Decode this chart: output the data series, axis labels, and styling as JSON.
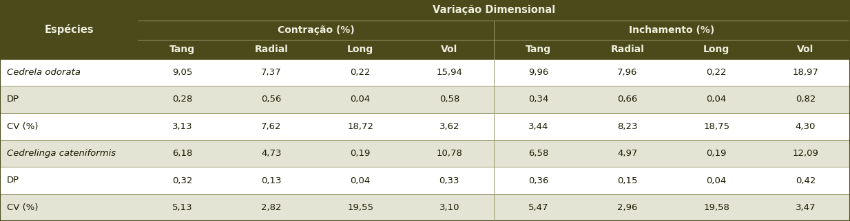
{
  "header_color": "#4a4a1a",
  "header_text_color": "#f0f0e0",
  "row_colors": [
    "#ffffff",
    "#e8e8d8",
    "#ffffff",
    "#e8e8d8",
    "#ffffff",
    "#e8e8d8"
  ],
  "border_color": "#4a4a1a",
  "text_color": "#1a1a00",
  "title_main": "Variação Dimensional",
  "col1_header": "Espécies",
  "subheader1": "Contração (%)",
  "subheader2": "Inchamento (%)",
  "col_headers": [
    "Tang",
    "Radial",
    "Long",
    "Vol",
    "Tang",
    "Radial",
    "Long",
    "Vol"
  ],
  "rows": [
    [
      "Cedrela odorata",
      "9,05",
      "7,37",
      "0,22",
      "15,94",
      "9,96",
      "7,96",
      "0,22",
      "18,97"
    ],
    [
      "DP",
      "0,28",
      "0,56",
      "0,04",
      "0,58",
      "0,34",
      "0,66",
      "0,04",
      "0,82"
    ],
    [
      "CV (%)",
      "3,13",
      "7,62",
      "18,72",
      "3,62",
      "3,44",
      "8,23",
      "18,75",
      "4,30"
    ],
    [
      "Cedrelinga cateniformis",
      "6,18",
      "4,73",
      "0,19",
      "10,78",
      "6,58",
      "4,97",
      "0,19",
      "12,09"
    ],
    [
      "DP",
      "0,32",
      "0,13",
      "0,04",
      "0,33",
      "0,36",
      "0,15",
      "0,04",
      "0,42"
    ],
    [
      "CV (%)",
      "5,13",
      "2,82",
      "19,55",
      "3,10",
      "5,47",
      "2,96",
      "19,58",
      "3,47"
    ]
  ],
  "italic_rows": [
    0,
    3
  ],
  "figsize": [
    12.34,
    3.22
  ],
  "dpi": 100,
  "row_bg_colors": [
    "#ffffff",
    "#e4e4d4",
    "#ffffff",
    "#e4e4d4",
    "#ffffff",
    "#e4e4d4"
  ]
}
